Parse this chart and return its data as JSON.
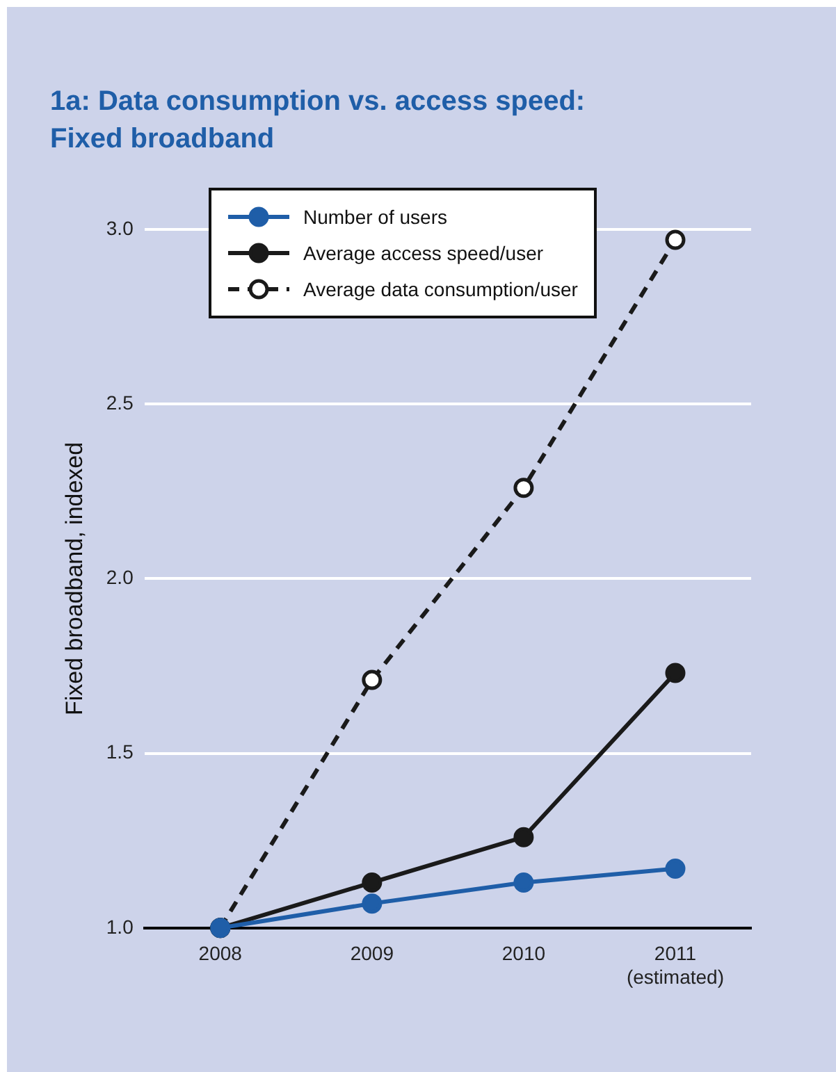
{
  "chart_data": {
    "type": "line",
    "title": "1a: Data consumption vs. access speed: Fixed broadband",
    "ylabel": "Fixed broadband, indexed",
    "categories": [
      "2008",
      "2009",
      "2010",
      "2011\n(estimated)"
    ],
    "series": [
      {
        "name": "Number of users",
        "color": "#1f5ea8",
        "values": [
          1.0,
          1.07,
          1.13,
          1.17
        ]
      },
      {
        "name": "Average access speed/user",
        "color": "#1a1a1a",
        "values": [
          1.0,
          1.13,
          1.26,
          1.73
        ]
      },
      {
        "name": "Average data consumption/user",
        "color": "#1a1a1a",
        "values": [
          1.0,
          1.71,
          2.26,
          2.97
        ],
        "line_style": "dashed"
      }
    ],
    "ylim": [
      1,
      3
    ],
    "yticks": [
      {
        "value": 1,
        "label": "1.0"
      },
      {
        "value": 1.5,
        "label": "1.5"
      },
      {
        "value": 2,
        "label": "2.0"
      },
      {
        "value": 2.5,
        "label": "2.5"
      },
      {
        "value": 3,
        "label": "3.0"
      }
    ],
    "grid": "y",
    "legend": "top left",
    "marker": "circle",
    "line_style": "solid"
  }
}
